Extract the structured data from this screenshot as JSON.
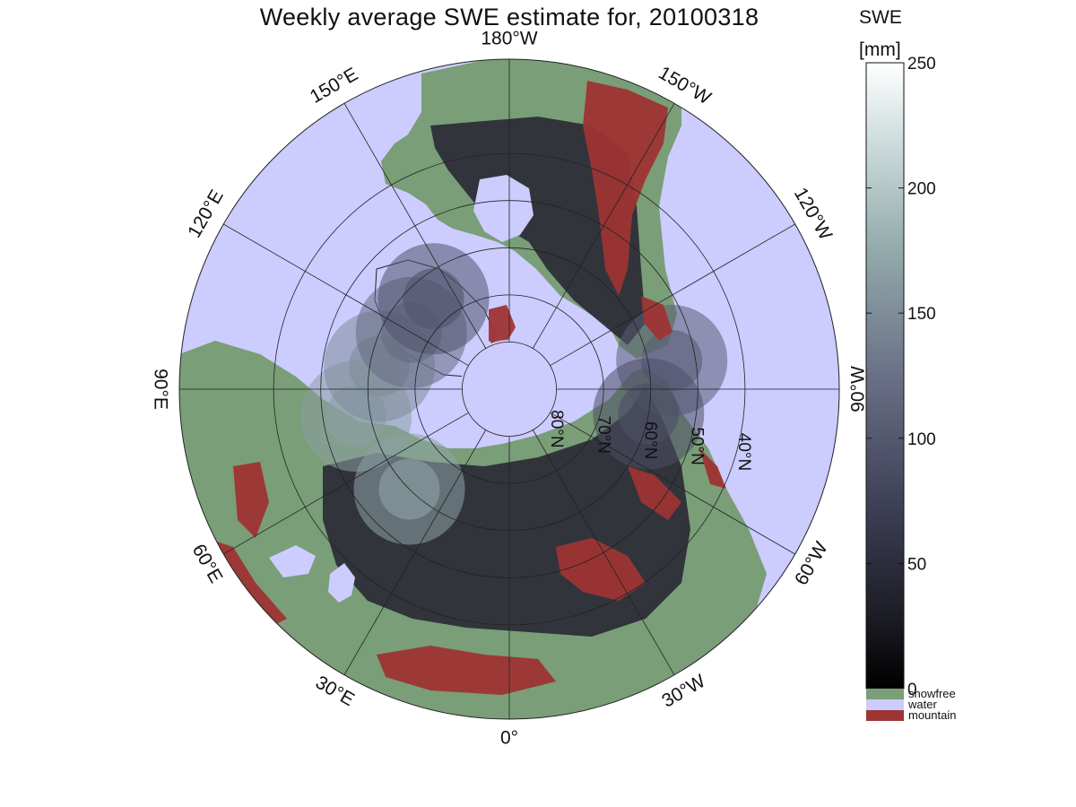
{
  "title": "Weekly average SWE estimate for, 20100318",
  "map": {
    "projection": "north-polar-stereographic",
    "colors": {
      "water": "#ccccff",
      "snowfree": "#7a9e78",
      "mountain": "#9e3434",
      "swe_low": "#0c0c10",
      "swe_mid": "#555a78",
      "swe_high": "#f8fbfb"
    },
    "longitude_labels": [
      {
        "text": "90°W",
        "lon": -90
      },
      {
        "text": "120°W",
        "lon": -120
      },
      {
        "text": "150°W",
        "lon": -150
      },
      {
        "text": "180°W",
        "lon": 180
      },
      {
        "text": "150°E",
        "lon": 150
      },
      {
        "text": "120°E",
        "lon": 120
      },
      {
        "text": "90°E",
        "lon": 90
      },
      {
        "text": "60°E",
        "lon": 60
      },
      {
        "text": "30°E",
        "lon": 30
      },
      {
        "text": "0°",
        "lon": 0
      },
      {
        "text": "30°W",
        "lon": -30
      },
      {
        "text": "60°W",
        "lon": -60
      }
    ],
    "latitude_labels": [
      {
        "text": "80°N",
        "lat": 80
      },
      {
        "text": "70°N",
        "lat": 70
      },
      {
        "text": "60°N",
        "lat": 60
      },
      {
        "text": "50°N",
        "lat": 50
      },
      {
        "text": "40°N",
        "lat": 40
      }
    ],
    "outer_latitude": 20,
    "snow_centers": [
      {
        "lat": 55,
        "lon": -100,
        "swe": 105
      },
      {
        "lat": 60,
        "lon": -80,
        "swe": 90
      },
      {
        "lat": 60,
        "lon": 45,
        "swe": 170
      },
      {
        "lat": 57,
        "lon": 80,
        "swe": 165
      },
      {
        "lat": 62,
        "lon": 100,
        "swe": 150
      },
      {
        "lat": 66,
        "lon": 120,
        "swe": 120
      },
      {
        "lat": 65,
        "lon": 140,
        "swe": 95
      }
    ]
  },
  "colorbar": {
    "label_top": "SWE",
    "label_unit": "[mm]",
    "min": 0,
    "max": 250,
    "ticks": [
      0,
      50,
      100,
      150,
      200,
      250
    ]
  },
  "legend": [
    {
      "label": "snowfree",
      "color": "#7a9e78"
    },
    {
      "label": "water",
      "color": "#ccccff"
    },
    {
      "label": "mountain",
      "color": "#9e3434"
    }
  ]
}
